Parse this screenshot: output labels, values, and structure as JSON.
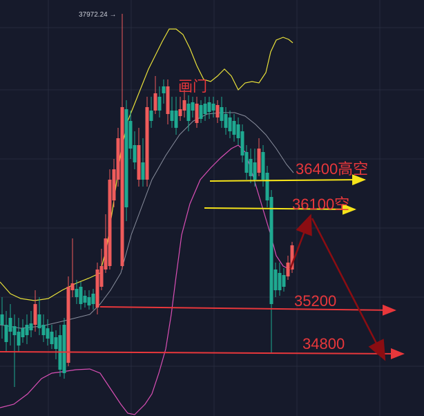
{
  "chart_data": {
    "type": "candlestick",
    "grid": true,
    "y_label_ticks": [],
    "high_marker": {
      "label": "37972.24 →",
      "value": 37972.24
    },
    "annotations": {
      "door_label": "画门",
      "levels": [
        {
          "text": "36400高空",
          "value": 36400,
          "line_color": "#f5e31a"
        },
        {
          "text": "36100空",
          "value": 36100,
          "line_color": "#f5e31a"
        },
        {
          "text": "35200",
          "value": 35200,
          "line_color": "#e8373b"
        },
        {
          "text": "34800",
          "value": 34800,
          "line_color": "#e8373b"
        }
      ]
    },
    "colors": {
      "up": "#ef5b5b",
      "down": "#1fa991",
      "upper_band": "#e8e03a",
      "mid_band": "#8a8f9e",
      "lower_band": "#d94fb5",
      "annotation_red": "#e8373b",
      "arrow_dark_red": "#8b0d12",
      "background": "#161a2b",
      "grid": "#262b3e"
    }
  }
}
